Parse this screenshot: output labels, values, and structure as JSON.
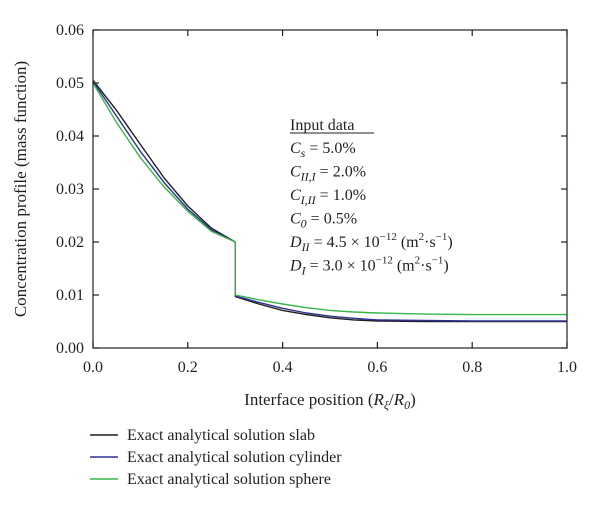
{
  "chart_data": {
    "type": "line",
    "xlabel_main": "Interface position (",
    "xlabel_r": "R",
    "xlabel_r_sub": "ξ",
    "xlabel_slash": "/",
    "xlabel_r0": "R",
    "xlabel_r0_sub": "0",
    "xlabel_close": ")",
    "ylabel": "Concentration profile (mass function)",
    "xlim": [
      0.0,
      1.0
    ],
    "ylim": [
      0.0,
      0.06
    ],
    "x_ticks": [
      "0.0",
      "0.2",
      "0.4",
      "0.6",
      "0.8",
      "1.0"
    ],
    "y_ticks": [
      "0.00",
      "0.01",
      "0.02",
      "0.03",
      "0.04",
      "0.05",
      "0.06"
    ],
    "grid": false,
    "legend_position": "bottom",
    "colors": {
      "slab": "#231f20",
      "cylinder": "#2e3192",
      "sphere": "#39b54a"
    },
    "series": [
      {
        "name": "Exact analytical solution slab",
        "key": "slab",
        "x": [
          0.0,
          0.05,
          0.1,
          0.15,
          0.2,
          0.25,
          0.3,
          0.3,
          0.35,
          0.4,
          0.45,
          0.5,
          0.55,
          0.6,
          0.7,
          0.8,
          0.9,
          1.0
        ],
        "y": [
          0.0505,
          0.0448,
          0.0384,
          0.0321,
          0.0268,
          0.0226,
          0.02,
          0.0097,
          0.0083,
          0.0071,
          0.0063,
          0.0057,
          0.0053,
          0.0051,
          0.005,
          0.005,
          0.005,
          0.005
        ]
      },
      {
        "name": "Exact analytical solution cylinder",
        "key": "cylinder",
        "x": [
          0.0,
          0.05,
          0.1,
          0.15,
          0.2,
          0.25,
          0.3,
          0.3,
          0.35,
          0.4,
          0.45,
          0.5,
          0.55,
          0.6,
          0.7,
          0.8,
          0.9,
          1.0
        ],
        "y": [
          0.0503,
          0.0437,
          0.0371,
          0.0312,
          0.0262,
          0.0223,
          0.02,
          0.0098,
          0.0086,
          0.0075,
          0.0066,
          0.006,
          0.0056,
          0.0053,
          0.0052,
          0.0051,
          0.0051,
          0.0051
        ]
      },
      {
        "name": "Exact analytical solution sphere",
        "key": "sphere",
        "x": [
          0.0,
          0.05,
          0.1,
          0.15,
          0.2,
          0.25,
          0.3,
          0.3,
          0.35,
          0.4,
          0.45,
          0.5,
          0.55,
          0.6,
          0.7,
          0.8,
          0.9,
          1.0
        ],
        "y": [
          0.05,
          0.0425,
          0.0359,
          0.0304,
          0.0258,
          0.022,
          0.02,
          0.01,
          0.0091,
          0.0083,
          0.0076,
          0.0071,
          0.0068,
          0.0066,
          0.0064,
          0.0063,
          0.0063,
          0.0063
        ]
      }
    ],
    "inset": {
      "heading": "Input data",
      "lines": [
        {
          "sym": "C",
          "sub": "s",
          "rest": " = 5.0%"
        },
        {
          "sym": "C",
          "sub": "II,I",
          "rest": " = 2.0%"
        },
        {
          "sym": "C",
          "sub": "I,II",
          "rest": " = 1.0%"
        },
        {
          "sym": "C",
          "sub": "0",
          "rest": " = 0.5%"
        },
        {
          "sym": "D",
          "sub": "II",
          "rest": " = 4.5 × 10",
          "exp": "−12",
          "unit_open": " (m",
          "unit_exp1": "2",
          "unit_mid": "·s",
          "unit_exp2": "−1",
          "unit_close": ")"
        },
        {
          "sym": "D",
          "sub": "I",
          "rest": " = 3.0 × 10",
          "exp": "−12",
          "unit_open": " (m",
          "unit_exp1": "2",
          "unit_mid": "·s",
          "unit_exp2": "−1",
          "unit_close": ")"
        }
      ]
    }
  }
}
